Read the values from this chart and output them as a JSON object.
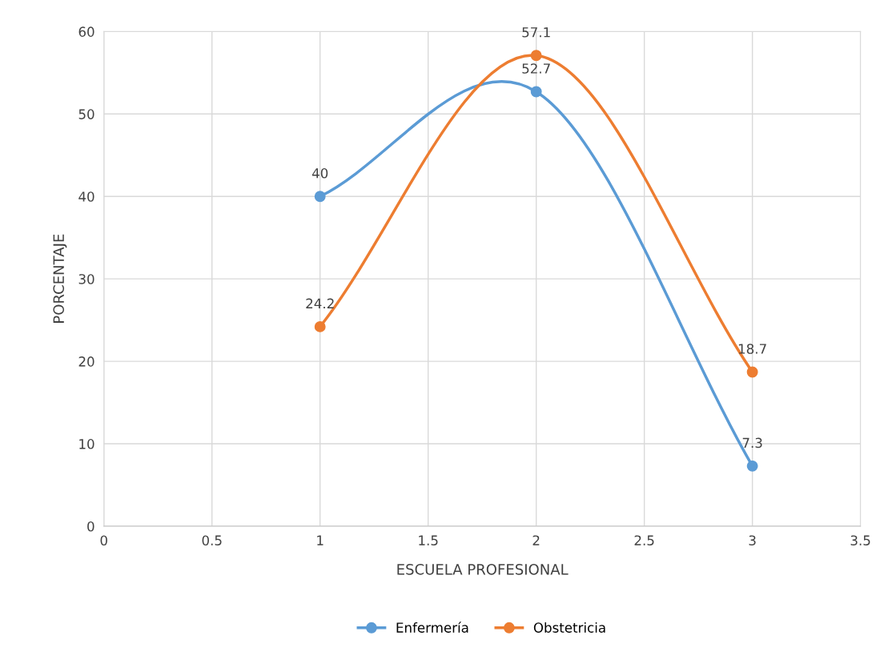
{
  "chart_data": {
    "type": "line",
    "xlabel": "ESCUELA PROFESIONAL",
    "ylabel": "PORCENTAJE",
    "x": [
      1,
      2,
      3
    ],
    "series": [
      {
        "name": "Enfermería",
        "color": "#5b9bd5",
        "values": [
          40,
          52.7,
          7.3
        ]
      },
      {
        "name": "Obstetricia",
        "color": "#ed7d31",
        "values": [
          24.2,
          57.1,
          18.7
        ]
      }
    ],
    "xlim": [
      0,
      3.5
    ],
    "xticks": [
      0,
      0.5,
      1,
      1.5,
      2,
      2.5,
      3,
      3.5
    ],
    "ylim": [
      0,
      60
    ],
    "yticks": [
      0,
      10,
      20,
      30,
      40,
      50,
      60
    ],
    "grid": true,
    "legend": "bottom",
    "marker": "circle",
    "line_style": "solid",
    "data_labels": true
  }
}
